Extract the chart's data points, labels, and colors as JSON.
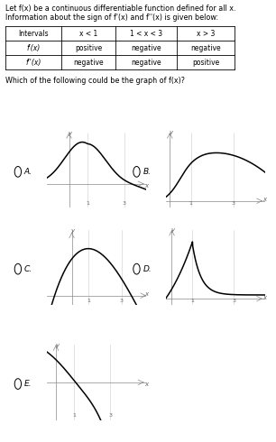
{
  "title_line1": "Let f(x) be a continuous differentiable function defined for all x.",
  "title_line2": "Information about the sign of f'(x) and f''(x) is given below:",
  "question": "Which of the following could be the graph of f(x)?",
  "table_headers": [
    "Intervals",
    "x < 1",
    "1 < x < 3",
    "x > 3"
  ],
  "table_row1": [
    "f'(x)",
    "positive",
    "negative",
    "negative"
  ],
  "table_row2": [
    "f''(x)",
    "negative",
    "negative",
    "positive"
  ],
  "bg_color": "#ffffff"
}
